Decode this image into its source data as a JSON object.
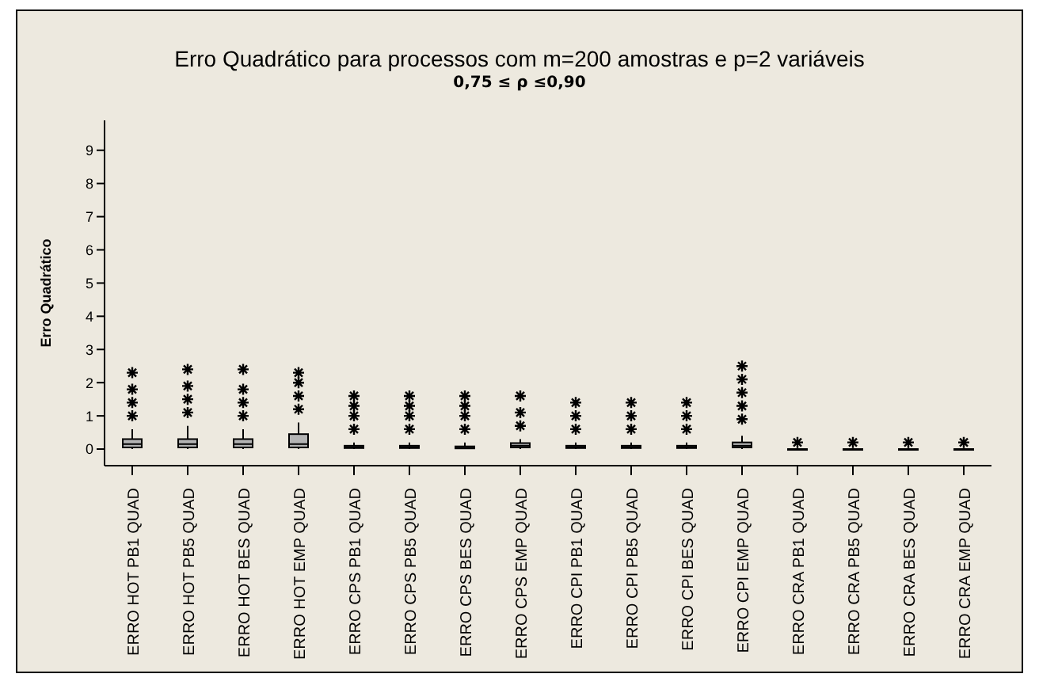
{
  "chart_data": {
    "type": "box",
    "title": "Erro Quadrático para processos com m=200 amostras e p=2 variáveis",
    "subtitle": "0,75 ≤ ρ ≤0,90",
    "ylabel": "Erro Quadrático",
    "categories": [
      "ERRO HOT PB1 QUAD",
      "ERRO HOT PB5 QUAD",
      "ERRO HOT BES QUAD",
      "ERRO HOT EMP QUAD",
      "ERRO CPS PB1 QUAD",
      "ERRO CPS PB5 QUAD",
      "ERRO CPS BES QUAD",
      "ERRO CPS EMP QUAD",
      "ERRO CPI PB1 QUAD",
      "ERRO CPI PB5 QUAD",
      "ERRO CPI BES QUAD",
      "ERRO CPI EMP QUAD",
      "ERRO CRA PB1 QUAD",
      "ERRO CRA PB5 QUAD",
      "ERRO CRA BES QUAD",
      "ERRO CRA EMP QUAD"
    ],
    "boxes": [
      {
        "low": 0,
        "q1": 0.05,
        "median": 0.15,
        "q3": 0.3,
        "high": 0.6,
        "outliers": [
          1,
          1.4,
          1.8,
          2.3
        ]
      },
      {
        "low": 0,
        "q1": 0.05,
        "median": 0.15,
        "q3": 0.3,
        "high": 0.7,
        "outliers": [
          1.1,
          1.5,
          1.9,
          2.4
        ]
      },
      {
        "low": 0,
        "q1": 0.05,
        "median": 0.15,
        "q3": 0.3,
        "high": 0.6,
        "outliers": [
          1,
          1.4,
          1.8,
          2.4
        ]
      },
      {
        "low": 0,
        "q1": 0.05,
        "median": 0.15,
        "q3": 0.45,
        "high": 0.8,
        "outliers": [
          1.2,
          1.6,
          2,
          2.3
        ]
      },
      {
        "low": 0,
        "q1": 0.03,
        "median": 0.06,
        "q3": 0.1,
        "high": 0.2,
        "outliers": [
          0.6,
          1,
          1.3,
          1.6
        ]
      },
      {
        "low": 0,
        "q1": 0.03,
        "median": 0.06,
        "q3": 0.1,
        "high": 0.2,
        "outliers": [
          0.6,
          1,
          1.3,
          1.6
        ]
      },
      {
        "low": 0,
        "q1": 0.02,
        "median": 0.04,
        "q3": 0.08,
        "high": 0.2,
        "outliers": [
          0.6,
          1,
          1.3,
          1.6
        ]
      },
      {
        "low": 0,
        "q1": 0.05,
        "median": 0.1,
        "q3": 0.18,
        "high": 0.3,
        "outliers": [
          0.7,
          1.1,
          1.6
        ]
      },
      {
        "low": 0,
        "q1": 0.03,
        "median": 0.06,
        "q3": 0.1,
        "high": 0.2,
        "outliers": [
          0.6,
          1,
          1.4
        ]
      },
      {
        "low": 0,
        "q1": 0.03,
        "median": 0.06,
        "q3": 0.1,
        "high": 0.2,
        "outliers": [
          0.6,
          1,
          1.4
        ]
      },
      {
        "low": 0,
        "q1": 0.03,
        "median": 0.06,
        "q3": 0.1,
        "high": 0.2,
        "outliers": [
          0.6,
          1,
          1.4
        ]
      },
      {
        "low": 0,
        "q1": 0.05,
        "median": 0.1,
        "q3": 0.2,
        "high": 0.4,
        "outliers": [
          0.9,
          1.3,
          1.7,
          2.1,
          2.5
        ]
      },
      {
        "low": 0,
        "q1": 0,
        "median": 0,
        "q3": 0,
        "high": 0,
        "outliers": [
          0.2
        ]
      },
      {
        "low": 0,
        "q1": 0,
        "median": 0,
        "q3": 0,
        "high": 0,
        "outliers": [
          0.2
        ]
      },
      {
        "low": 0,
        "q1": 0,
        "median": 0,
        "q3": 0,
        "high": 0,
        "outliers": [
          0.2
        ]
      },
      {
        "low": 0,
        "q1": 0,
        "median": 0,
        "q3": 0,
        "high": 0,
        "outliers": [
          0.2
        ]
      }
    ],
    "color": "#b4b4b4",
    "ylim": [
      -0.5,
      9.9
    ],
    "yticks": [
      0,
      1,
      2,
      3,
      4,
      5,
      6,
      7,
      8,
      9
    ]
  }
}
